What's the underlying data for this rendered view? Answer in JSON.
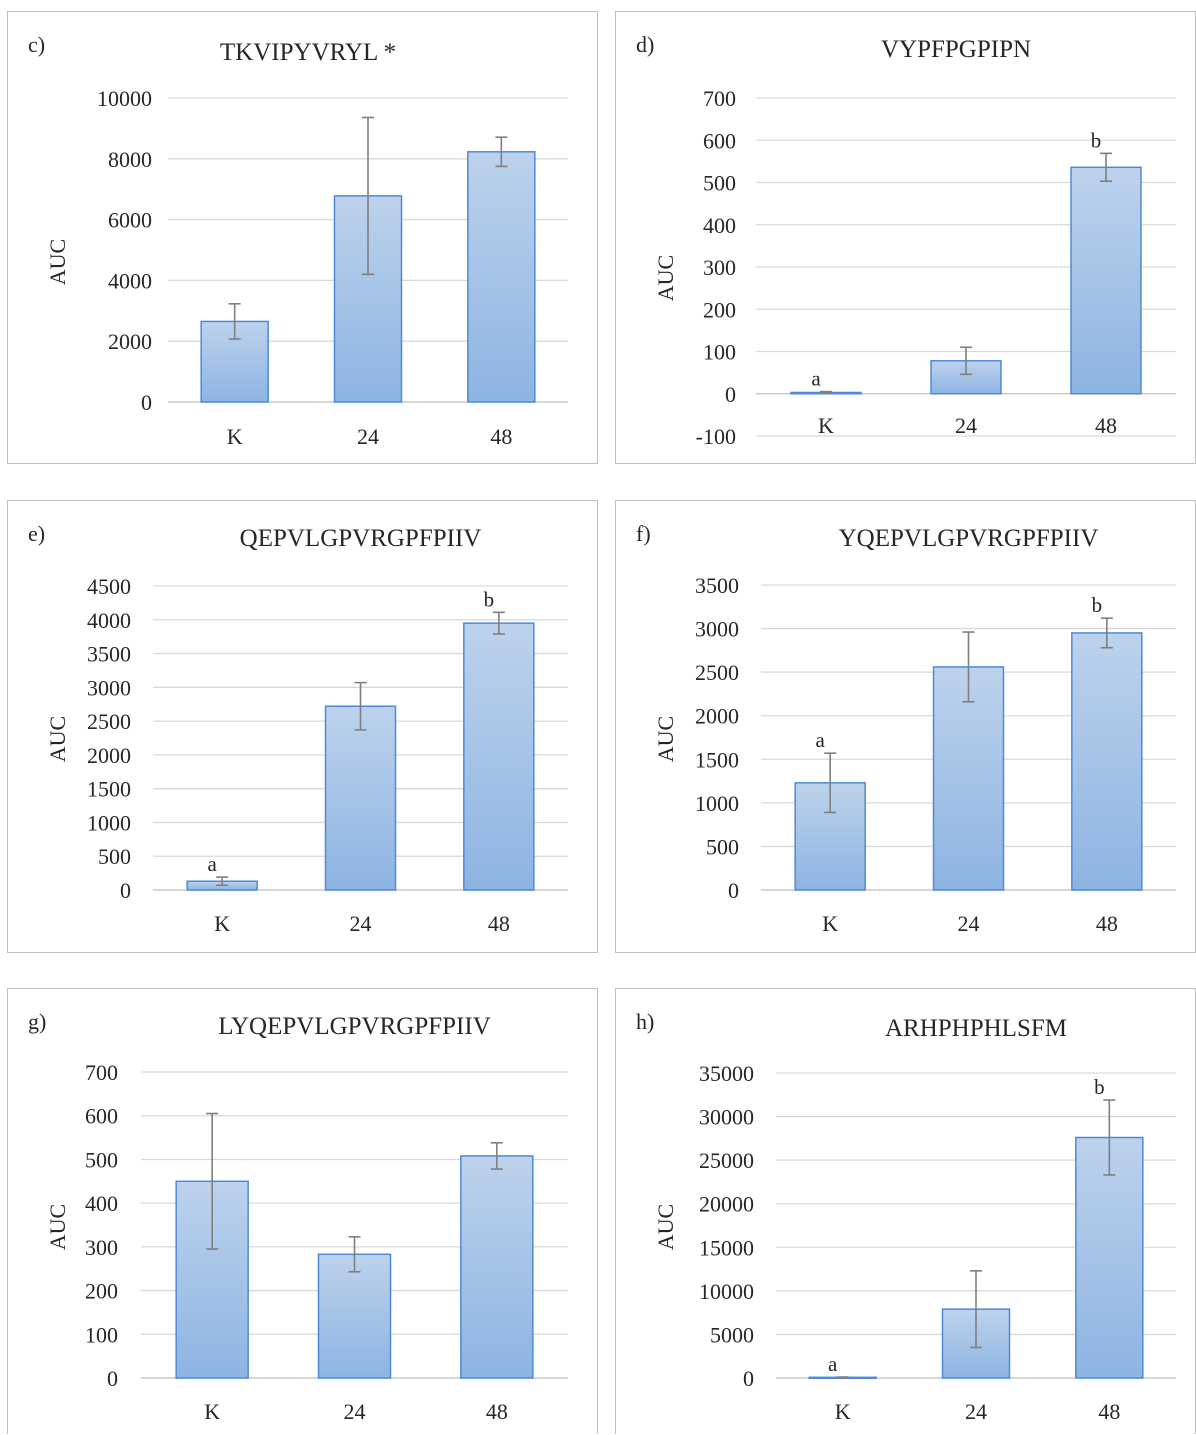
{
  "colors": {
    "bar_top": "#bdd2ec",
    "bar_bottom": "#8db4e2",
    "bar_edge": "#4f8ad6",
    "gridline": "#d9d9d9",
    "axis": "#bfbfbf",
    "error_bar": "#7f7f7f",
    "text": "#262626"
  },
  "chart_data": [
    {
      "panel_label": "c)",
      "type": "bar",
      "title": "TKVIPYVRYL *",
      "ylabel": "AUC",
      "categories": [
        "K",
        "24",
        "48"
      ],
      "values": [
        2650,
        6780,
        8230
      ],
      "errors": [
        580,
        2580,
        480
      ],
      "annotations": [
        "",
        "",
        ""
      ],
      "ylim": [
        0,
        10000
      ],
      "yticks": [
        0,
        2000,
        4000,
        6000,
        8000,
        10000
      ],
      "grid": true
    },
    {
      "panel_label": "d)",
      "type": "bar",
      "title": "VYPFPGPIPN",
      "ylabel": "AUC",
      "categories": [
        "K",
        "24",
        "48"
      ],
      "values": [
        3,
        78,
        536
      ],
      "errors": [
        2,
        32,
        33
      ],
      "annotations": [
        "a",
        "",
        "b"
      ],
      "ylim": [
        -100,
        700
      ],
      "yticks": [
        -100,
        0,
        100,
        200,
        300,
        400,
        500,
        600,
        700
      ],
      "grid": true
    },
    {
      "panel_label": "e)",
      "type": "bar",
      "title": "QEPVLGPVRGPFPIIV",
      "ylabel": "AUC",
      "categories": [
        "K",
        "24",
        "48"
      ],
      "values": [
        130,
        2720,
        3950
      ],
      "errors": [
        60,
        350,
        160
      ],
      "annotations": [
        "a",
        "",
        "b"
      ],
      "ylim": [
        0,
        4500
      ],
      "yticks": [
        0,
        500,
        1000,
        1500,
        2000,
        2500,
        3000,
        3500,
        4000,
        4500
      ],
      "grid": true
    },
    {
      "panel_label": "f)",
      "type": "bar",
      "title": "YQEPVLGPVRGPFPIIV",
      "ylabel": "AUC",
      "categories": [
        "K",
        "24",
        "48"
      ],
      "values": [
        1230,
        2560,
        2950
      ],
      "errors": [
        340,
        400,
        170
      ],
      "annotations": [
        "a",
        "",
        "b"
      ],
      "ylim": [
        0,
        3500
      ],
      "yticks": [
        0,
        500,
        1000,
        1500,
        2000,
        2500,
        3000,
        3500
      ],
      "grid": true
    },
    {
      "panel_label": "g)",
      "type": "bar",
      "title": "LYQEPVLGPVRGPFPIIV",
      "ylabel": "AUC",
      "categories": [
        "K",
        "24",
        "48"
      ],
      "values": [
        450,
        283,
        508
      ],
      "errors": [
        155,
        40,
        30
      ],
      "annotations": [
        "",
        "",
        ""
      ],
      "ylim": [
        0,
        700
      ],
      "yticks": [
        0,
        100,
        200,
        300,
        400,
        500,
        600,
        700
      ],
      "grid": true
    },
    {
      "panel_label": "h)",
      "type": "bar",
      "title": "ARHPHPHLSFM",
      "ylabel": "AUC",
      "categories": [
        "K",
        "24",
        "48"
      ],
      "values": [
        80,
        7900,
        27600
      ],
      "errors": [
        30,
        4400,
        4300
      ],
      "annotations": [
        "a",
        "",
        "b"
      ],
      "ylim": [
        0,
        35000
      ],
      "yticks": [
        0,
        5000,
        10000,
        15000,
        20000,
        25000,
        30000,
        35000
      ],
      "grid": true
    }
  ]
}
